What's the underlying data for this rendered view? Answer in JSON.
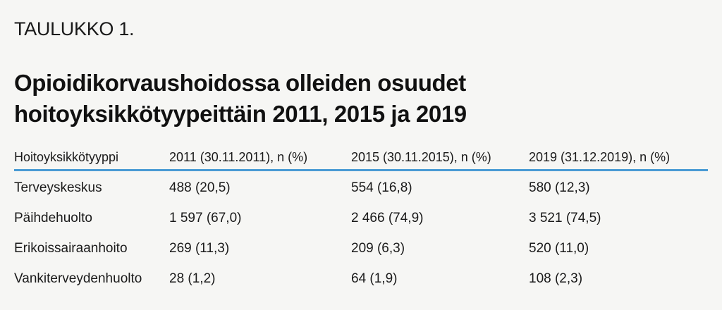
{
  "table_label": "TAULUKKO 1.",
  "title_lines": [
    "Opioidikorvaushoidossa olleiden osuudet",
    "hoitoyksikkötyypeittäin 2011, 2015 ja 2019"
  ],
  "colors": {
    "header_rule": "#4a9bd4",
    "background": "#f6f6f4",
    "text": "#141414"
  },
  "table": {
    "headers": [
      "Hoitoyksikkötyyppi",
      "2011 (30.11.2011), n (%)",
      "2015 (30.11.2015), n (%)",
      "2019 (31.12.2019), n (%)"
    ],
    "rows": [
      [
        "Terveyskeskus",
        "488 (20,5)",
        "554 (16,8)",
        "580 (12,3)"
      ],
      [
        "Päihdehuolto",
        "1 597 (67,0)",
        "2 466 (74,9)",
        "3 521 (74,5)"
      ],
      [
        "Erikoissairaanhoito",
        "269 (11,3)",
        "209 (6,3)",
        "520 (11,0)"
      ],
      [
        "Vankiterveydenhuolto",
        "28 (1,2)",
        "64 (1,9)",
        "108 (2,3)"
      ]
    ]
  }
}
